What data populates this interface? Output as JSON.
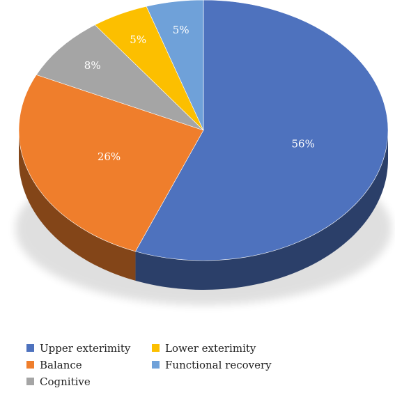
{
  "chart_data": {
    "type": "pie",
    "style": "3d",
    "title": "",
    "start_angle_deg": 90,
    "direction": "clockwise",
    "categories": [
      "Upper exterimity",
      "Balance",
      "Cognitive",
      "Lower exterimity",
      "Functional recovery"
    ],
    "values": [
      56,
      26,
      8,
      5,
      5
    ],
    "data_labels": [
      "56%",
      "26%",
      "8%",
      "5%",
      "5%"
    ],
    "colors": [
      "#4E72BE",
      "#EF7E2C",
      "#A5A5A5",
      "#FCBF00",
      "#6FA1D9"
    ],
    "legend_position": "bottom"
  },
  "legend": {
    "items": [
      {
        "label": "Upper exterimity",
        "color": "#4E72BE"
      },
      {
        "label": "Lower exterimity",
        "color": "#FCBF00"
      },
      {
        "label": "Balance",
        "color": "#EF7E2C"
      },
      {
        "label": "Functional recovery",
        "color": "#6FA1D9"
      },
      {
        "label": "Cognitive",
        "color": "#A5A5A5"
      }
    ]
  }
}
